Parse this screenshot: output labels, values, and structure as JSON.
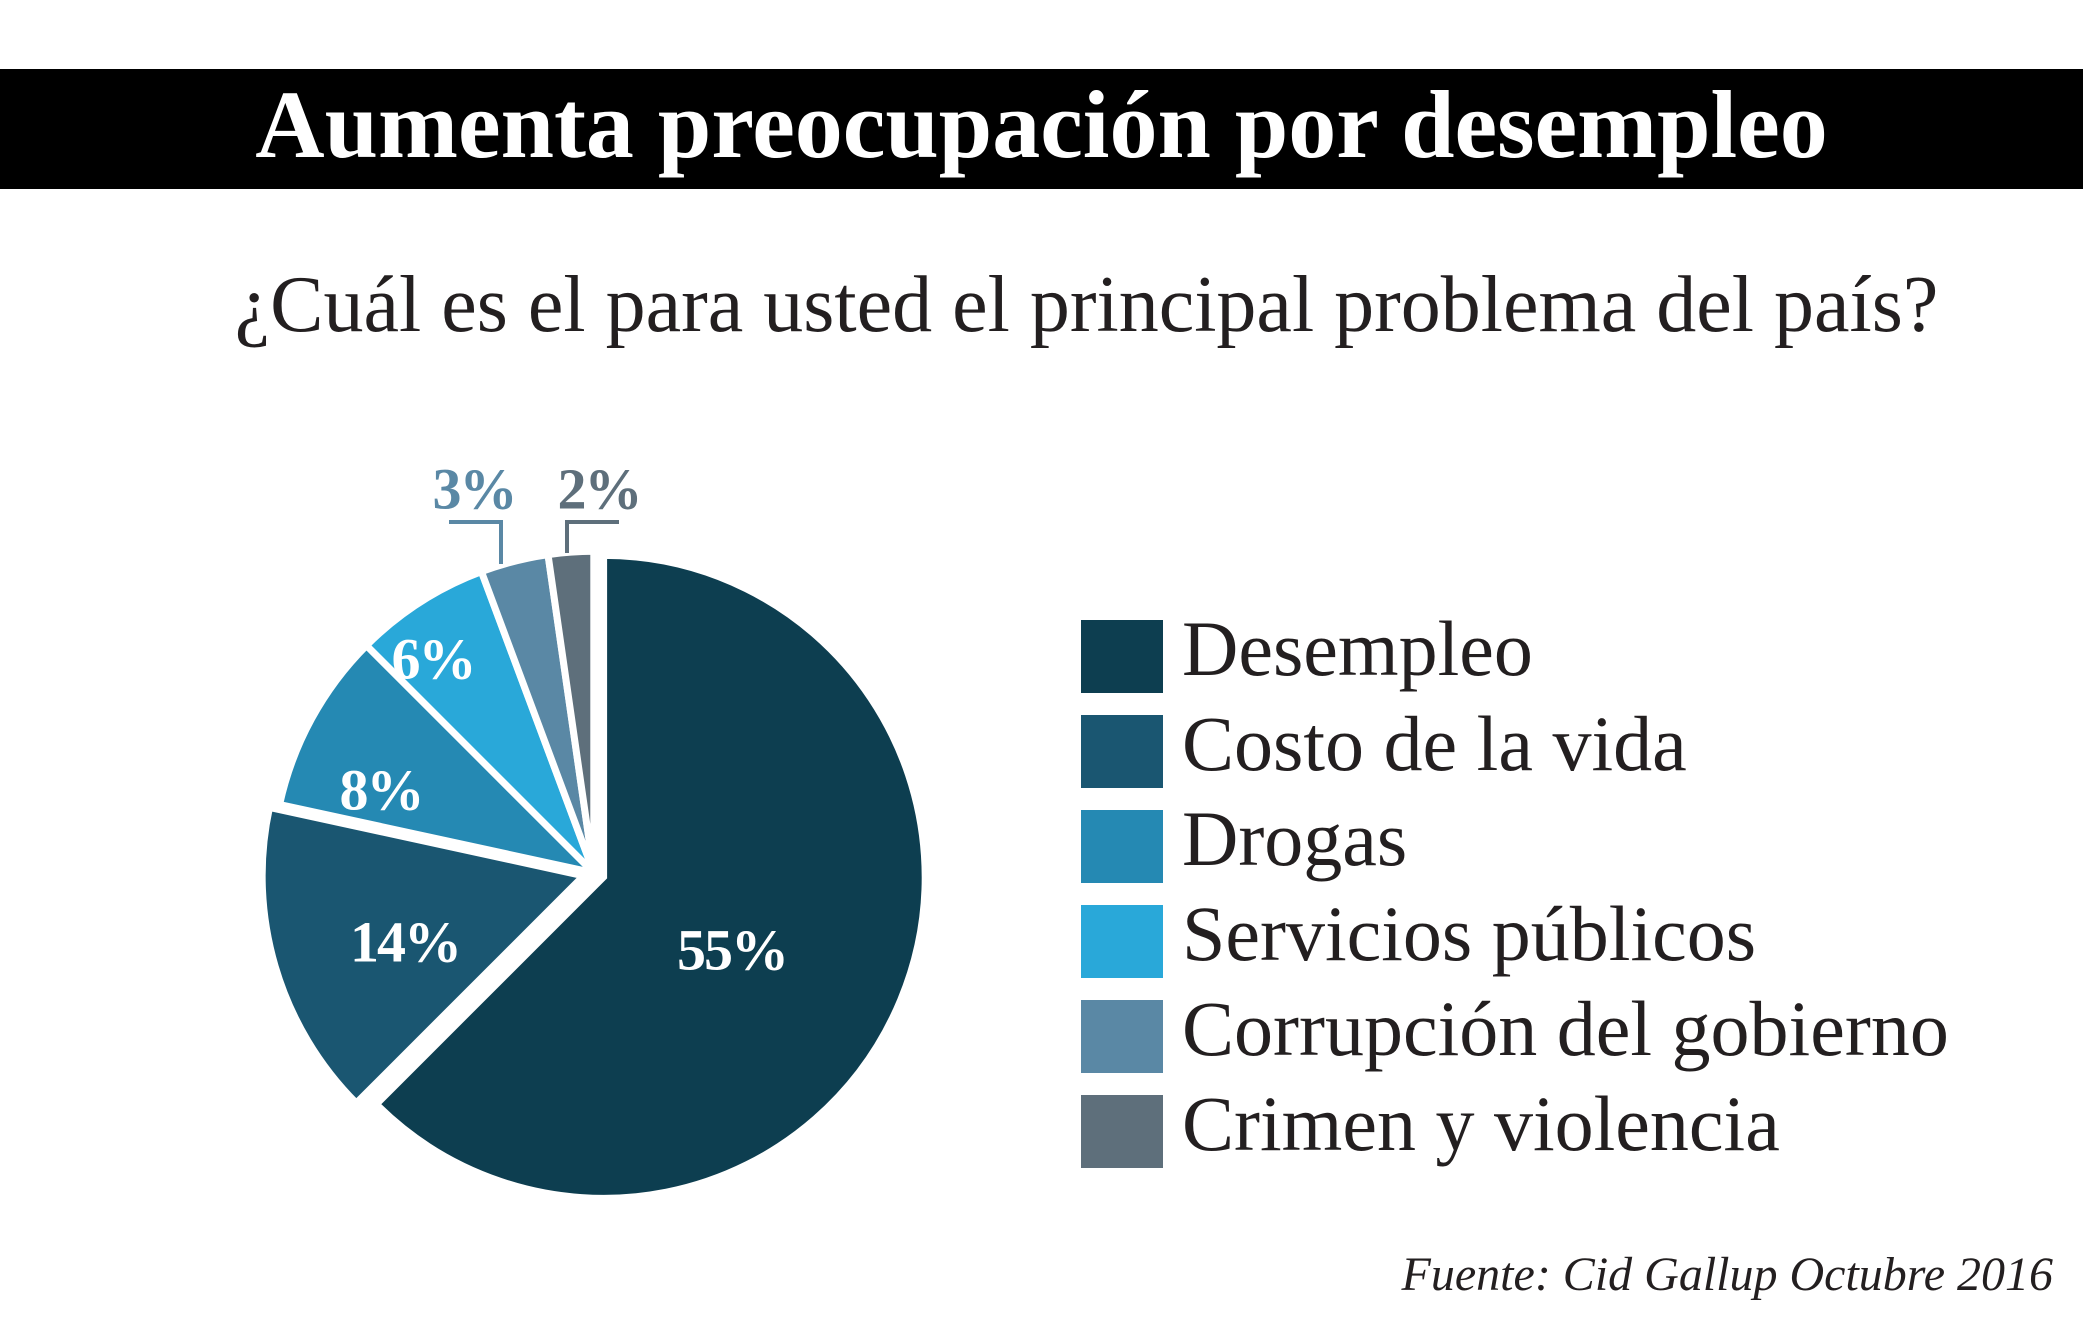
{
  "chart_data": {
    "type": "pie",
    "title": "Aumenta preocupación por desempleo",
    "subtitle": "¿Cuál es el para usted el principal problema del país?",
    "categories": [
      "Desempleo",
      "Costo de la vida",
      "Drogas",
      "Servicios públicos",
      "Corrupción del gobierno",
      "Crimen y violencia"
    ],
    "values": [
      55,
      14,
      8,
      6,
      3,
      2
    ],
    "data_labels": [
      "55%",
      "14%",
      "8%",
      "6%",
      "3%",
      "2%"
    ],
    "colors": [
      "#0d3e50",
      "#1a5671",
      "#2589b3",
      "#29a8d9",
      "#5a88a5",
      "#5e6f7b"
    ],
    "legend_position": "right",
    "source": "Fuente: Cid Gallup Octubre 2016"
  }
}
